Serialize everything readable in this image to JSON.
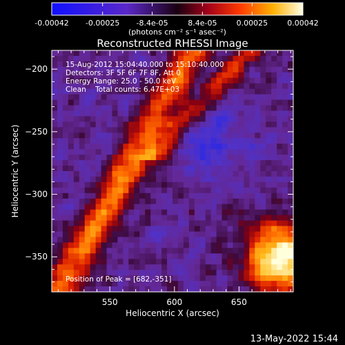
{
  "chart_data": {
    "type": "heatmap",
    "title": "Reconstructed RHESSI Image",
    "xlabel": "Heliocentric X (arcsec)",
    "ylabel": "Heliocentric Y (arcsec)",
    "xlim": [
      505,
      692
    ],
    "ylim": [
      -378,
      -185
    ],
    "xticks": [
      550,
      600,
      650
    ],
    "yticks": [
      -200,
      -250,
      -300,
      -350
    ],
    "colorbar": {
      "range": [
        -0.00042,
        0.00042
      ],
      "tick_labels": [
        "-0.00042",
        "-0.00025",
        "-8.4e-05",
        "8.4e-05",
        "0.00025",
        "0.00042"
      ],
      "tick_values": [
        -0.00042,
        -0.00025,
        -8.4e-05,
        8.4e-05,
        0.00025,
        0.00042
      ],
      "units_label": "(photons cm⁻² s⁻¹ asec⁻²)"
    },
    "info_lines": [
      "15-Aug-2012 15:04:40.000 to 15:10:40.000",
      "Detectors: 3F 5F 6F 7F 8F, Att 0",
      "Energy Range: 25.0 - 50.0 keV",
      "Clean    Total counts: 6.47E+03"
    ],
    "peak_label": "Position of Peak = [682,-351]",
    "peak": [
      682,
      -351
    ],
    "grid": false
  },
  "footer_timestamp": "13-May-2022 15:44"
}
